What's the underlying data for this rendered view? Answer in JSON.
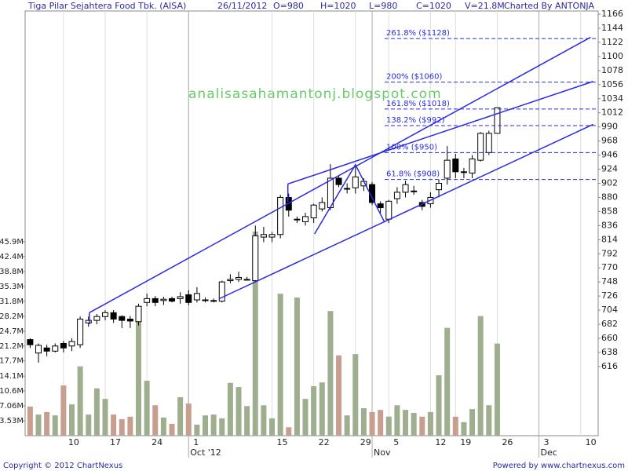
{
  "chart_data": {
    "type": "candlestick",
    "title": "Tiga Pilar Sejahtera Food Tbk. (AISA)",
    "header": [
      "26/11/2012",
      "O=980",
      "H=1020",
      "L=980",
      "C=1020",
      "V=21.8M"
    ],
    "credit": "Charted By ANTONJA",
    "watermark": "analisasahamantonj.blogspot.com",
    "footer_left": "Copyright © 2012 ChartNexus",
    "footer_right": "Powered by www.chartnexus.com",
    "x": [
      0,
      1,
      2,
      3,
      4,
      5,
      6,
      7,
      8,
      9,
      10,
      11,
      12,
      13,
      14,
      15,
      16,
      17,
      18,
      19,
      20,
      21,
      22,
      23,
      24,
      25,
      26,
      27,
      28,
      29,
      30,
      31,
      32,
      33,
      34,
      35,
      36,
      37,
      38,
      39,
      40,
      41,
      42,
      43,
      44,
      45,
      46,
      47,
      48,
      49,
      50,
      51,
      52,
      53,
      54,
      55,
      56
    ],
    "open": [
      658,
      637,
      645,
      640,
      652,
      648,
      650,
      684,
      688,
      694,
      700,
      694,
      690,
      686,
      716,
      722,
      719,
      722,
      722,
      728,
      720,
      720,
      719,
      718,
      750,
      752,
      752,
      750,
      818,
      818,
      822,
      880,
      846,
      842,
      848,
      862,
      864,
      910,
      894,
      895,
      898,
      900,
      870,
      846,
      878,
      888,
      890,
      872,
      870,
      892,
      910,
      940,
      920,
      918,
      938,
      950,
      980
    ],
    "high": [
      660,
      652,
      650,
      652,
      656,
      660,
      694,
      694,
      698,
      704,
      704,
      696,
      695,
      714,
      730,
      726,
      725,
      725,
      732,
      735,
      740,
      724,
      722,
      750,
      760,
      764,
      756,
      836,
      834,
      826,
      884,
      886,
      850,
      856,
      870,
      880,
      932,
      914,
      902,
      932,
      910,
      904,
      874,
      876,
      896,
      906,
      898,
      876,
      888,
      908,
      960,
      948,
      926,
      946,
      982,
      984,
      1020
    ],
    "low": [
      645,
      622,
      632,
      638,
      638,
      640,
      645,
      678,
      682,
      688,
      684,
      676,
      676,
      680,
      710,
      710,
      712,
      716,
      714,
      712,
      716,
      716,
      716,
      716,
      746,
      748,
      750,
      748,
      810,
      810,
      816,
      850,
      840,
      836,
      840,
      858,
      860,
      896,
      886,
      886,
      890,
      868,
      856,
      840,
      870,
      880,
      884,
      860,
      864,
      880,
      900,
      910,
      910,
      910,
      936,
      946,
      980
    ],
    "close": [
      650,
      649,
      640,
      648,
      645,
      655,
      690,
      688,
      694,
      700,
      690,
      688,
      687,
      710,
      722,
      716,
      721,
      718,
      725,
      716,
      730,
      720,
      719,
      748,
      752,
      755,
      752,
      820,
      822,
      822,
      880,
      860,
      846,
      850,
      868,
      872,
      910,
      900,
      894,
      912,
      905,
      872,
      864,
      874,
      888,
      900,
      890,
      866,
      880,
      902,
      938,
      920,
      920,
      940,
      980,
      980,
      1020
    ],
    "volume": [
      6900000,
      5000000,
      5600000,
      4800000,
      11900000,
      7400000,
      16400000,
      5000000,
      11200000,
      8700000,
      5000000,
      3900000,
      4500000,
      27400000,
      13000000,
      7200000,
      4300000,
      2800000,
      9100000,
      7600000,
      2600000,
      4800000,
      5000000,
      4100000,
      12500000,
      11500000,
      7000000,
      48300000,
      7200000,
      4100000,
      33600000,
      2000000,
      32700000,
      8700000,
      11700000,
      12600000,
      29500000,
      19000000,
      4800000,
      19300000,
      6500000,
      5600000,
      6100000,
      4500000,
      7200000,
      6100000,
      5400000,
      4500000,
      5600000,
      14300000,
      25500000,
      4500000,
      3200000,
      6300000,
      28300000,
      7200000,
      21800000
    ],
    "up_color": "#ffffff",
    "down_color": "#000000",
    "volume_up_color": "#9eae8e",
    "volume_down_color": "#c89f8e",
    "line_color": "#2a2ae0",
    "xlim": [
      -0.6,
      68.1
    ],
    "xticks": [
      {
        "value": 4,
        "label": "10"
      },
      {
        "value": 9,
        "label": "17"
      },
      {
        "value": 14,
        "label": "24"
      },
      {
        "value": 19,
        "label": "1"
      },
      {
        "value": 29,
        "label": "15"
      },
      {
        "value": 34,
        "label": "22"
      },
      {
        "value": 39,
        "label": "29"
      },
      {
        "value": 43,
        "label": "5"
      },
      {
        "value": 48,
        "label": "12"
      },
      {
        "value": 51,
        "label": "19"
      },
      {
        "value": 56,
        "label": "26"
      },
      {
        "value": 61,
        "label": "3"
      },
      {
        "value": 66,
        "label": "10"
      }
    ],
    "month_ticks": [
      {
        "value": 19,
        "label": "Oct '12"
      },
      {
        "value": 41,
        "label": "Nov"
      },
      {
        "value": 61,
        "label": "Dec"
      }
    ],
    "ylim": [
      508,
      1171
    ],
    "yticks": [
      616,
      638,
      660,
      682,
      704,
      726,
      748,
      770,
      792,
      814,
      836,
      858,
      880,
      902,
      924,
      946,
      968,
      990,
      1012,
      1034,
      1056,
      1078,
      1100,
      1122,
      1144,
      1166
    ],
    "y2lim": [
      0,
      100500000
    ],
    "y2ticks": [
      {
        "value": 3530000,
        "label": "3.53M"
      },
      {
        "value": 7060000,
        "label": "7.06M"
      },
      {
        "value": 10600000,
        "label": "10.6M"
      },
      {
        "value": 14100000,
        "label": "14.1M"
      },
      {
        "value": 17700000,
        "label": "17.7M"
      },
      {
        "value": 21200000,
        "label": "21.2M"
      },
      {
        "value": 24700000,
        "label": "24.7M"
      },
      {
        "value": 28200000,
        "label": "28.2M"
      },
      {
        "value": 31800000,
        "label": "31.8M"
      },
      {
        "value": 35300000,
        "label": "35.3M"
      },
      {
        "value": 38800000,
        "label": "38.8M"
      },
      {
        "value": 42400000,
        "label": "42.4M"
      },
      {
        "value": 45900000,
        "label": "45.9M"
      }
    ],
    "trendlines": [
      [
        7.1,
        700,
        67.2,
        1130
      ],
      [
        7.1,
        700,
        7.1,
        682
      ],
      [
        30.9,
        901,
        67.5,
        1061
      ],
      [
        30.9,
        901,
        30.9,
        873
      ],
      [
        22.7,
        722,
        67.5,
        994
      ]
    ],
    "zigzag": {
      "x": [
        34.1,
        39,
        42.5
      ],
      "y": [
        823,
        931,
        841
      ]
    },
    "fib_start": 42.5,
    "fib_levels": [
      {
        "value": 1128,
        "label": "261.8%  ($1128)"
      },
      {
        "value": 1060,
        "label": "200%  ($1060)"
      },
      {
        "value": 1018,
        "label": "161.8%  ($1018)"
      },
      {
        "value": 992,
        "label": "138.2%  ($992)"
      },
      {
        "value": 950,
        "label": "100%  ($950)"
      },
      {
        "value": 908,
        "label": "61.8%  ($908)"
      }
    ]
  }
}
